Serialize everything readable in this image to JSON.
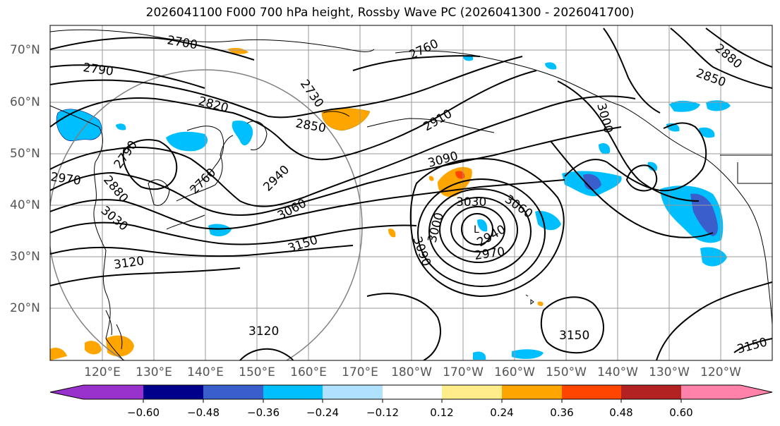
{
  "title": "2026041100 F000 700 hPa height, Rossby Wave PC (2026041300 - 2026041700)",
  "map": {
    "lat_labels": [
      "70°N",
      "60°N",
      "50°N",
      "40°N",
      "30°N",
      "20°N"
    ],
    "lon_labels": [
      "120°E",
      "130°E",
      "140°E",
      "150°E",
      "160°E",
      "170°E",
      "180°W",
      "170°W",
      "160°W",
      "150°W",
      "140°W",
      "130°W",
      "120°W"
    ],
    "contour_labels": [
      "2700",
      "2760",
      "2790",
      "2820",
      "2730",
      "2850",
      "2910",
      "2880",
      "2850",
      "3000",
      "2790",
      "2970",
      "2880",
      "2760",
      "2940",
      "3090",
      "3030",
      "3060",
      "3030",
      "3060",
      "3000",
      "3150",
      "2940",
      "2970",
      "3090",
      "3120",
      "3120",
      "3150",
      "3150"
    ],
    "low_center_label": "L",
    "colors": {
      "contour": "#000000",
      "grid": "#9a9a9a",
      "coast": "#000000",
      "circle": "#808080"
    }
  },
  "colorbar": {
    "ticks": [
      "−0.60",
      "−0.48",
      "−0.36",
      "−0.24",
      "−0.12",
      "0.12",
      "0.24",
      "0.36",
      "0.48",
      "0.60"
    ],
    "colors": [
      "#9932cc",
      "#00008b",
      "#3a5fcd",
      "#00bfff",
      "#b0e2ff",
      "#ffffff",
      "#ffec8b",
      "#ffa500",
      "#ff4500",
      "#b22222",
      "#ff82ab"
    ]
  }
}
